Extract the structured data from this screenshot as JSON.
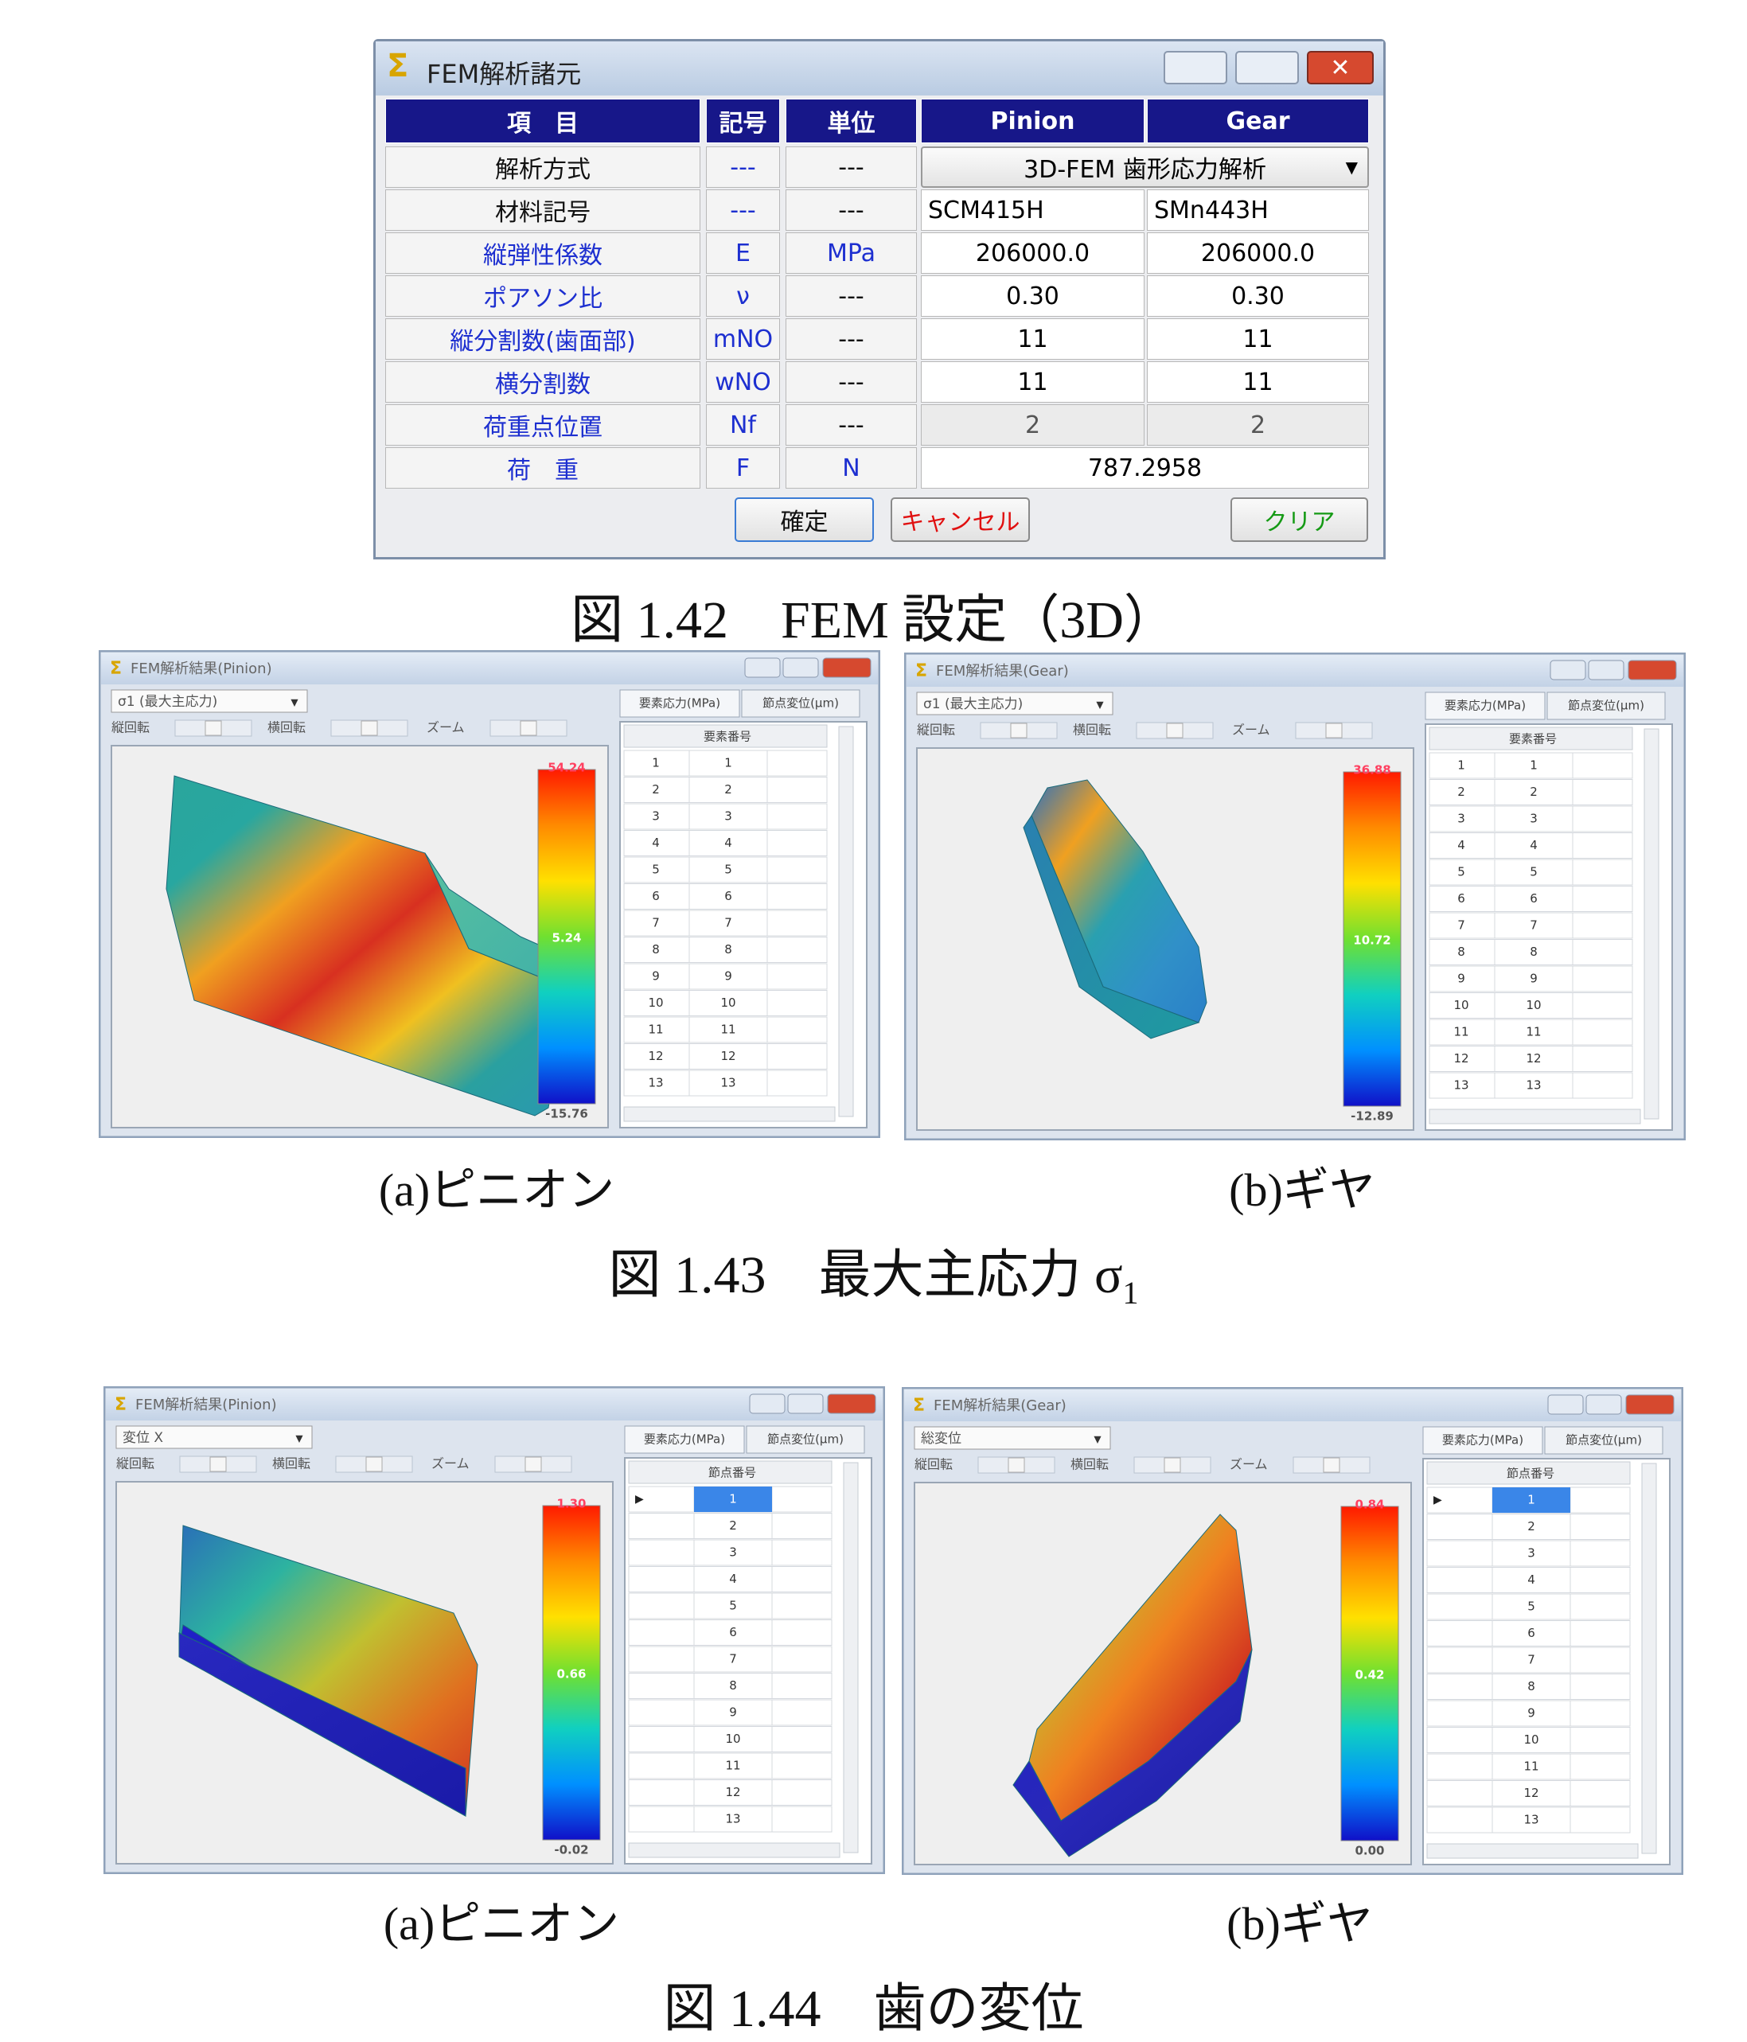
{
  "dialog": {
    "title": "FEM解析諸元",
    "headers": [
      "項　目",
      "記号",
      "単位",
      "Pinion",
      "Gear"
    ],
    "rows": [
      [
        "解析方式",
        "---",
        "---",
        "3D-FEM 歯形応力解析"
      ],
      [
        "材料記号",
        "---",
        "---",
        "SCM415H",
        "SMn443H"
      ],
      [
        "縦弾性係数",
        "E",
        "MPa",
        "206000.0",
        "206000.0"
      ],
      [
        "ポアソン比",
        "ν",
        "---",
        "0.30",
        "0.30"
      ],
      [
        "縦分割数(歯面部)",
        "mNO",
        "---",
        "11",
        "11"
      ],
      [
        "横分割数",
        "wNO",
        "---",
        "11",
        "11"
      ],
      [
        "荷重点位置",
        "Nf",
        "---",
        "2",
        "2"
      ],
      [
        "荷　重",
        "F",
        "N",
        "787.2958"
      ]
    ],
    "buttons": [
      "確定",
      "キャンセル",
      "クリア"
    ]
  },
  "captions": [
    {
      "text": "図 1.42　FEM 設定（3D）"
    },
    {
      "text": "図 1.43　最大主応力 σ",
      "sub": "1"
    },
    {
      "text": "図 1.44　歯の変位"
    }
  ],
  "panels": [
    {
      "window_title": "FEM解析結果(Pinion)",
      "dropdown": "σ1 (最大主応力)",
      "controls": [
        "縦回転",
        "横回転",
        "ズーム"
      ],
      "tabs": [
        "要素応力(MPa)",
        "節点変位(μm)"
      ],
      "column": "要素番号",
      "index_column": [
        1,
        2,
        3,
        4,
        5,
        6,
        7,
        8,
        9,
        10,
        11,
        12,
        13
      ],
      "ids": [
        1,
        2,
        3,
        4,
        5,
        6,
        7,
        8,
        9,
        10,
        11,
        12,
        13
      ],
      "legend": [
        "54.24",
        "5.24",
        "-15.76"
      ],
      "subcaption": "(a)ピニオン"
    },
    {
      "window_title": "FEM解析結果(Gear)",
      "dropdown": "σ1 (最大主応力)",
      "controls": [
        "縦回転",
        "横回転",
        "ズーム"
      ],
      "tabs": [
        "要素応力(MPa)",
        "節点変位(μm)"
      ],
      "column": "要素番号",
      "index_column": [
        1,
        2,
        3,
        4,
        5,
        6,
        7,
        8,
        9,
        10,
        11,
        12,
        13
      ],
      "ids": [
        1,
        2,
        3,
        4,
        5,
        6,
        7,
        8,
        9,
        10,
        11,
        12,
        13
      ],
      "legend": [
        "36.88",
        "10.72",
        "-12.89"
      ],
      "subcaption": "(b)ギヤ"
    },
    {
      "window_title": "FEM解析結果(Pinion)",
      "dropdown": "変位 X",
      "controls": [
        "縦回転",
        "横回転",
        "ズーム"
      ],
      "tabs": [
        "要素応力(MPa)",
        "節点変位(μm)"
      ],
      "column": "節点番号",
      "ids": [
        1,
        2,
        3,
        4,
        5,
        6,
        7,
        8,
        9,
        10,
        11,
        12,
        13
      ],
      "legend": [
        "1.30",
        "0.66",
        "-0.02"
      ],
      "subcaption": "(a)ピニオン"
    },
    {
      "window_title": "FEM解析結果(Gear)",
      "dropdown": "総変位",
      "controls": [
        "縦回転",
        "横回転",
        "ズーム"
      ],
      "tabs": [
        "要素応力(MPa)",
        "節点変位(μm)"
      ],
      "column": "節点番号",
      "ids": [
        1,
        2,
        3,
        4,
        5,
        6,
        7,
        8,
        9,
        10,
        11,
        12,
        13
      ],
      "legend": [
        "0.84",
        "0.42",
        "0.00"
      ],
      "subcaption": "(b)ギヤ"
    }
  ]
}
